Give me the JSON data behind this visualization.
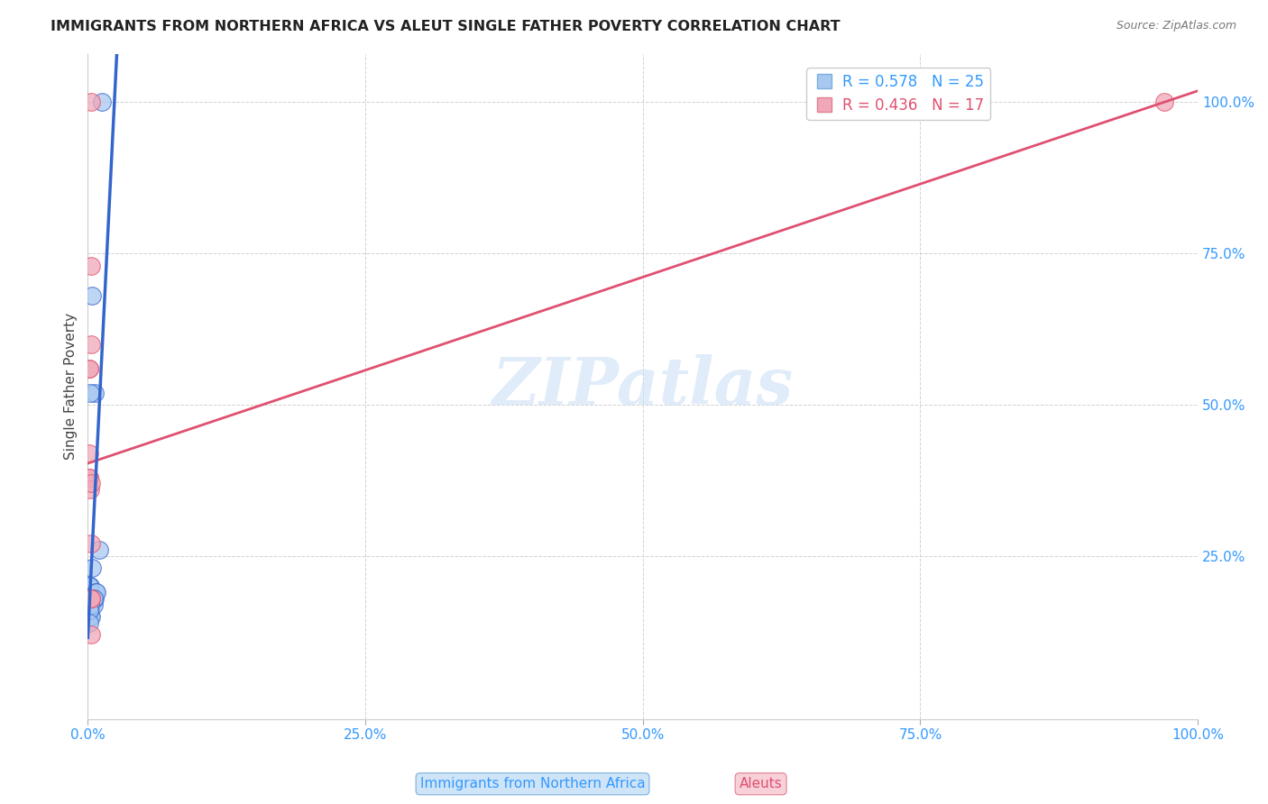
{
  "title": "IMMIGRANTS FROM NORTHERN AFRICA VS ALEUT SINGLE FATHER POVERTY CORRELATION CHART",
  "source": "Source: ZipAtlas.com",
  "xlabel_blue": "Immigrants from Northern Africa",
  "xlabel_pink": "Aleuts",
  "ylabel": "Single Father Poverty",
  "background_color": "#ffffff",
  "grid_color": "#cccccc",
  "blue_color": "#a8c8f0",
  "blue_line_color": "#3366cc",
  "blue_dash_color": "#aabbdd",
  "pink_color": "#f0a8b8",
  "pink_line_color": "#e05070",
  "legend_R_blue": "R = 0.578",
  "legend_N_blue": "N = 25",
  "legend_R_pink": "R = 0.436",
  "legend_N_pink": "N = 17",
  "blue_points_x": [
    0.002,
    0.004,
    0.006,
    0.002,
    0.002,
    0.001,
    0.001,
    0.002,
    0.0015,
    0.0025,
    0.004,
    0.005,
    0.007,
    0.01,
    0.013,
    0.001,
    0.002,
    0.003,
    0.005,
    0.006,
    0.008,
    0.005,
    0.002,
    0.001,
    0.0015
  ],
  "blue_points_y": [
    0.2,
    0.68,
    0.52,
    0.52,
    0.15,
    0.17,
    0.2,
    0.18,
    0.17,
    0.16,
    0.23,
    0.18,
    0.19,
    0.26,
    1.0,
    0.17,
    0.16,
    0.15,
    0.17,
    0.18,
    0.19,
    0.18,
    0.17,
    0.16,
    0.14
  ],
  "pink_points_x": [
    0.001,
    0.001,
    0.001,
    0.001,
    0.001,
    0.001,
    0.002,
    0.002,
    0.003,
    0.003,
    0.003,
    0.003,
    0.003,
    0.003,
    0.003,
    0.97,
    0.003
  ],
  "pink_points_y": [
    0.42,
    0.56,
    0.56,
    0.38,
    0.38,
    0.18,
    0.36,
    0.18,
    0.18,
    0.18,
    1.0,
    0.6,
    0.27,
    0.12,
    0.37,
    1.0,
    0.73
  ],
  "xlim": [
    0.0,
    1.0
  ],
  "ylim": [
    -0.02,
    1.08
  ],
  "xticks": [
    0.0,
    0.25,
    0.5,
    0.75,
    1.0
  ],
  "yticks": [
    0.25,
    0.5,
    0.75,
    1.0
  ],
  "xtick_labels": [
    "0.0%",
    "25.0%",
    "50.0%",
    "75.0%",
    "100.0%"
  ],
  "ytick_labels_right": [
    "25.0%",
    "50.0%",
    "75.0%",
    "100.0%"
  ],
  "watermark": "ZIPatlas",
  "watermark_color": "#cce0f5"
}
